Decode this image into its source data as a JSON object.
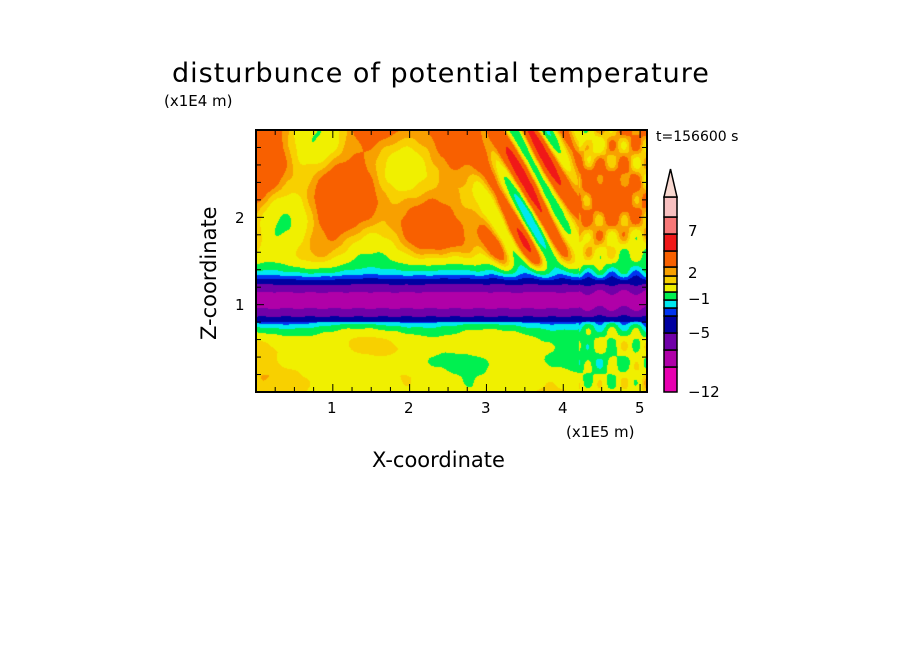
{
  "chart_data": {
    "type": "heatmap",
    "subtype": "filled-contour",
    "title": "disturbunce of potential temperature",
    "xlabel": "X-coordinate",
    "ylabel": "Z-coordinate",
    "x_unit": "(x1E5 m)",
    "y_unit": "(x1E4 m)",
    "time_label": "t=156600 s",
    "xlim": [
      0,
      5.09
    ],
    "ylim": [
      0,
      3.0
    ],
    "xticks": [
      "1",
      "2",
      "3",
      "4",
      "5"
    ],
    "yticks": [
      "1",
      "2"
    ],
    "colorbar": {
      "labels": [
        "7",
        "2",
        "−1",
        "−5",
        "−12"
      ],
      "label_values": [
        7,
        2,
        -1,
        -5,
        -12
      ],
      "colors_bottom_to_top": [
        "#e800b0",
        "#b000a8",
        "#7000a8",
        "#0000a0",
        "#0034f0",
        "#00e8f0",
        "#00f050",
        "#f0f000",
        "#f8d000",
        "#f8a000",
        "#f86000",
        "#f01818",
        "#f87878",
        "#f8c0c0"
      ],
      "extend_color": "#f8d8d0",
      "extend": "max"
    },
    "description_of_field": "negative band near z=1 (x1E4 m); positive wave pattern above z=1.4; mixed weak values below"
  }
}
